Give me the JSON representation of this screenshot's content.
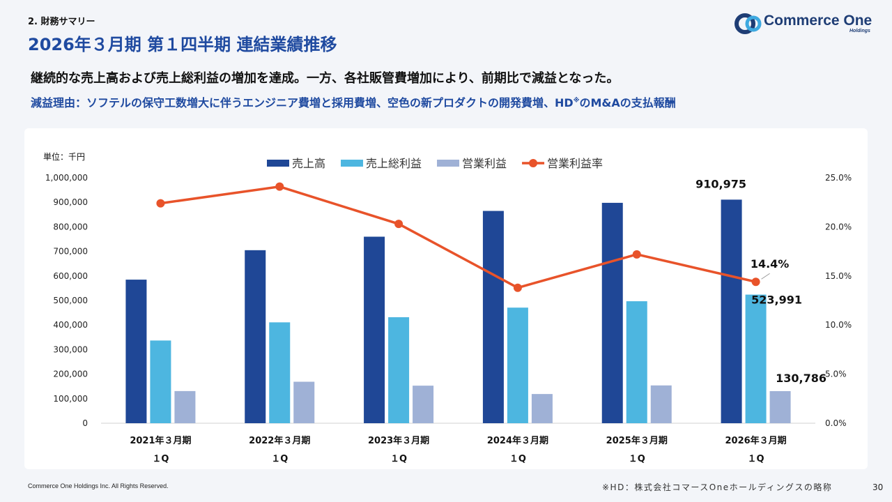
{
  "header": {
    "section": "2. 財務サマリー",
    "title": "2026年３月期 第１四半期 連結業績推移",
    "logo_text": "Commerce One",
    "logo_sub": "Holdings"
  },
  "summary": {
    "line1": "継続的な売上高および売上総利益の増加を達成。一方、各社販管費増加により、前期比で減益となった。",
    "line2_pre": "減益理由：ソフテルの保守工数増大に伴うエンジニア費増と採用費増、空色の新プロダクトの開発費増、HD",
    "line2_mark": "※",
    "line2_post": "のM&Aの支払報酬"
  },
  "chart_data": {
    "type": "bar",
    "unit_label": "単位：千円",
    "categories": [
      [
        "2021年３月期",
        "１Q"
      ],
      [
        "2022年３月期",
        "１Q"
      ],
      [
        "2023年３月期",
        "１Q"
      ],
      [
        "2024年３月期",
        "１Q"
      ],
      [
        "2025年３月期",
        "１Q"
      ],
      [
        "2026年３月期",
        "１Q"
      ]
    ],
    "series": [
      {
        "name": "売上高",
        "type": "bar",
        "color": "#1f4796",
        "values": [
          585000,
          705000,
          760000,
          865000,
          898000,
          910975
        ]
      },
      {
        "name": "売上総利益",
        "type": "bar",
        "color": "#4db6e0",
        "values": [
          337000,
          411000,
          432000,
          471000,
          497000,
          523991
        ]
      },
      {
        "name": "営業利益",
        "type": "bar",
        "color": "#9fb1d6",
        "values": [
          131000,
          169000,
          153000,
          119000,
          154000,
          130786
        ]
      },
      {
        "name": "営業利益率",
        "type": "line",
        "axis": "right",
        "color": "#e8532a",
        "values": [
          22.4,
          24.1,
          20.3,
          13.8,
          17.2,
          14.4
        ]
      }
    ],
    "y_left": {
      "min": 0,
      "max": 1000000,
      "ticks": [
        "0",
        "100,000",
        "200,000",
        "300,000",
        "400,000",
        "500,000",
        "600,000",
        "700,000",
        "800,000",
        "900,000",
        "1,000,000"
      ]
    },
    "y_right": {
      "min": 0,
      "max": 25,
      "ticks": [
        "0.0%",
        "5.0%",
        "10.0%",
        "15.0%",
        "20.0%",
        "25.0%"
      ]
    },
    "data_labels": [
      {
        "text": "910,975",
        "series": 0,
        "index": 5
      },
      {
        "text": "523,991",
        "series": 1,
        "index": 5
      },
      {
        "text": "130,786",
        "series": 2,
        "index": 5
      },
      {
        "text": "14.4%",
        "series": 3,
        "index": 5
      }
    ],
    "legend": "top",
    "grid": false
  },
  "footer": {
    "copyright": "Commerce One Holdings Inc. All Rights Reserved.",
    "note": "※HD：株式会社コマースOneホールディングスの略称",
    "page": "30"
  }
}
